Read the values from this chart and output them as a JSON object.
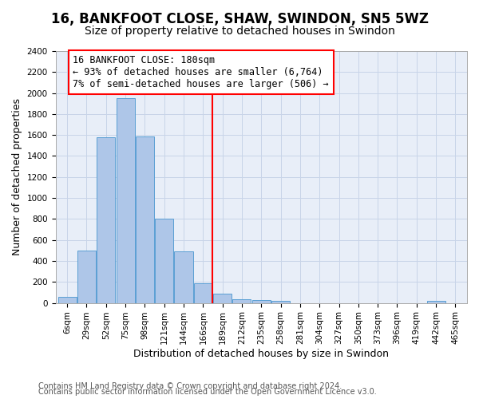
{
  "title": "16, BANKFOOT CLOSE, SHAW, SWINDON, SN5 5WZ",
  "subtitle": "Size of property relative to detached houses in Swindon",
  "xlabel": "Distribution of detached houses by size in Swindon",
  "ylabel": "Number of detached properties",
  "footnote1": "Contains HM Land Registry data © Crown copyright and database right 2024.",
  "footnote2": "Contains public sector information licensed under the Open Government Licence v3.0.",
  "categories": [
    "6sqm",
    "29sqm",
    "52sqm",
    "75sqm",
    "98sqm",
    "121sqm",
    "144sqm",
    "166sqm",
    "189sqm",
    "212sqm",
    "235sqm",
    "258sqm",
    "281sqm",
    "304sqm",
    "327sqm",
    "350sqm",
    "373sqm",
    "396sqm",
    "419sqm",
    "442sqm",
    "465sqm"
  ],
  "values": [
    60,
    500,
    1580,
    1950,
    1590,
    800,
    490,
    190,
    90,
    35,
    25,
    20,
    0,
    0,
    0,
    0,
    0,
    0,
    0,
    20,
    0
  ],
  "bar_color": "#aec6e8",
  "bar_edge_color": "#5a9fd4",
  "highlight_line_color": "red",
  "annotation_title": "16 BANKFOOT CLOSE: 180sqm",
  "annotation_line1": "← 93% of detached houses are smaller (6,764)",
  "annotation_line2": "7% of semi-detached houses are larger (506) →",
  "annotation_box_color": "red",
  "ylim": [
    0,
    2400
  ],
  "yticks": [
    0,
    200,
    400,
    600,
    800,
    1000,
    1200,
    1400,
    1600,
    1800,
    2000,
    2200,
    2400
  ],
  "grid_color": "#c8d4e8",
  "bg_color": "#e8eef8",
  "title_fontsize": 12,
  "subtitle_fontsize": 10,
  "xlabel_fontsize": 9,
  "ylabel_fontsize": 9,
  "tick_fontsize": 7.5,
  "annot_fontsize": 8.5,
  "footnote_fontsize": 7
}
